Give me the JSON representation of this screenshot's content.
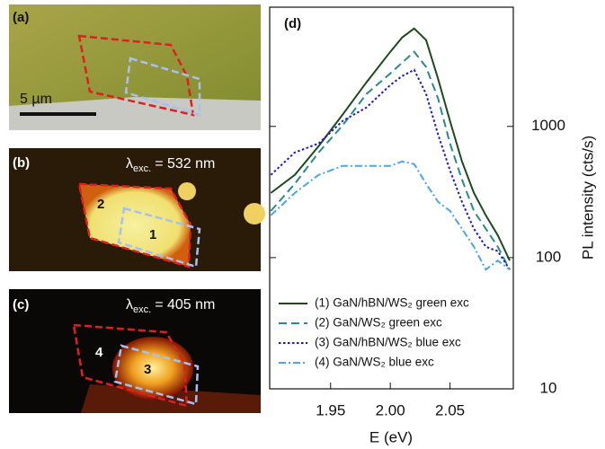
{
  "panels": {
    "a": {
      "label": "(a)",
      "scale": "5 µm"
    },
    "b": {
      "label": "(b)",
      "lambda": {
        "symbol": "λ",
        "sub": "exc.",
        "text": "= 532 nm"
      },
      "regions": [
        "2",
        "1"
      ]
    },
    "c": {
      "label": "(c)",
      "lambda": {
        "symbol": "λ",
        "sub": "exc.",
        "text": "= 405 nm"
      },
      "regions": [
        "4",
        "3"
      ]
    }
  },
  "chart_data": {
    "type": "line",
    "panel_label": "(d)",
    "x_label": "E (eV)",
    "y_label": "PL intensity (cts/s)",
    "xlim": [
      1.899,
      2.103
    ],
    "ylim": [
      10,
      8100
    ],
    "log_y": true,
    "legend": "lower left",
    "xticks": [
      1.95,
      {
        "value": 2,
        "label": "2.00"
      },
      2.05
    ],
    "yticks": [
      10,
      100,
      1000
    ],
    "x": [
      1.9,
      1.92,
      1.94,
      1.96,
      1.98,
      2.0,
      2.01,
      2.02,
      2.03,
      2.04,
      2.05,
      2.06,
      2.07,
      2.08,
      2.09,
      2.1
    ],
    "series": [
      {
        "name": "(1) GaN/hBN/WS₂ green exc",
        "color": "#1c4a1c",
        "line_style": "solid",
        "values": [
          311,
          427,
          707,
          1228,
          2166,
          3702,
          4767,
          5580,
          4546,
          2306,
          1099,
          541,
          311,
          210,
          148,
          95
        ]
      },
      {
        "name": "(2) GaN/WS₂ green exc",
        "color": "#2a8a8a",
        "line_style": "dashed",
        "values": [
          227,
          365,
          633,
          1016,
          1765,
          2535,
          3064,
          3702,
          2833,
          1631,
          741,
          394,
          227,
          166,
          121,
          81
        ]
      },
      {
        "name": "(3) GaN/hBN/WS₂ blue exc",
        "color": "#1a1acc",
        "line_style": "dotted",
        "values": [
          427,
          633,
          741,
          1099,
          1393,
          2066,
          2420,
          2702,
          1765,
          868,
          462,
          266,
          166,
          121,
          112,
          81
        ]
      },
      {
        "name": "(4) GaN/WS₂ blue exc",
        "color": "#4da6e0",
        "line_style": "dashdot",
        "values": [
          210,
          311,
          427,
          500,
          500,
          500,
          541,
          516,
          365,
          266,
          227,
          166,
          121,
          81,
          95,
          81
        ]
      }
    ]
  }
}
